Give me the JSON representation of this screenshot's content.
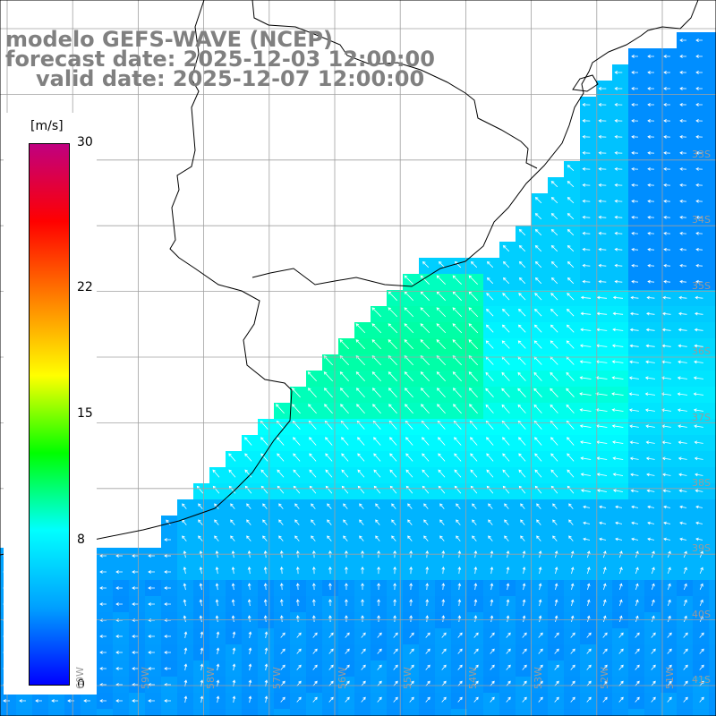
{
  "title": {
    "line1": "modelo GEFS-WAVE (NCEP)",
    "line2": "forecast date: 2025-12-03 12:00:00",
    "line3": "valid date: 2025-12-07 12:00:00"
  },
  "colorbar": {
    "unit": "[m/s]",
    "min": 0,
    "max": 30,
    "ticks": [
      {
        "value": 30,
        "label": "30"
      },
      {
        "value": 22,
        "label": "22"
      },
      {
        "value": 15,
        "label": "15"
      },
      {
        "value": 8,
        "label": "8"
      },
      {
        "value": 0,
        "label": "0"
      }
    ],
    "colors": [
      "#0000ff",
      "#00a0ff",
      "#00ffff",
      "#00ff00",
      "#ffff00",
      "#ff8000",
      "#ff0000",
      "#c00080"
    ]
  },
  "lat_labels": [
    "33S",
    "34S",
    "35S",
    "36S",
    "37S",
    "38S",
    "39S",
    "40S",
    "41S"
  ],
  "lon_labels": [
    "60W",
    "59W",
    "58W",
    "57W",
    "56W",
    "55W",
    "54W",
    "53W",
    "52W",
    "51W"
  ],
  "colors": {
    "land": "#ffffff",
    "coastline": "#000000",
    "grid": "#a0a0a0",
    "arrow": "#ffffff",
    "title": "#808080"
  }
}
